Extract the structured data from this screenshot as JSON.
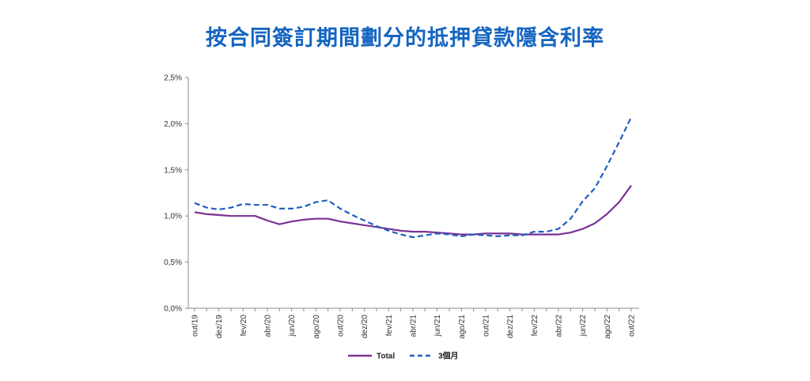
{
  "chart_data": {
    "type": "line",
    "title": "按合同簽訂期間劃分的抵押貸款隱含利率",
    "x": [
      "out/19",
      "nov/19",
      "dez/19",
      "jan/20",
      "fev/20",
      "mar/20",
      "abr/20",
      "mai/20",
      "jun/20",
      "jul/20",
      "ago/20",
      "set/20",
      "out/20",
      "nov/20",
      "dez/20",
      "jan/21",
      "fev/21",
      "mar/21",
      "abr/21",
      "mai/21",
      "jun/21",
      "jul/21",
      "ago/21",
      "set/21",
      "out/21",
      "nov/21",
      "dez/21",
      "jan/22",
      "fev/22",
      "mar/22",
      "abr/22",
      "mai/22",
      "jun/22",
      "jul/22",
      "ago/22",
      "set/22",
      "out/22"
    ],
    "x_tick_labels": [
      "out/19",
      "dez/19",
      "fev/20",
      "abr/20",
      "jun/20",
      "ago/20",
      "out/20",
      "dez/20",
      "fev/21",
      "abr/21",
      "jun/21",
      "ago/21",
      "out/21",
      "dez/21",
      "fev/22",
      "abr/22",
      "jun/22",
      "ago/22",
      "out/22"
    ],
    "y_tick_labels": [
      "0,0%",
      "0,5%",
      "1,0%",
      "1,5%",
      "2,0%",
      "2,5%"
    ],
    "ylim": [
      0,
      2.5
    ],
    "series": [
      {
        "name": "Total",
        "color": "#7b3294",
        "style": "solid",
        "values": [
          1.04,
          1.02,
          1.01,
          1.0,
          1.0,
          1.0,
          0.95,
          0.91,
          0.94,
          0.96,
          0.97,
          0.97,
          0.94,
          0.92,
          0.9,
          0.88,
          0.86,
          0.84,
          0.83,
          0.83,
          0.82,
          0.81,
          0.8,
          0.8,
          0.81,
          0.81,
          0.81,
          0.8,
          0.8,
          0.8,
          0.8,
          0.82,
          0.86,
          0.92,
          1.02,
          1.15,
          1.33
        ]
      },
      {
        "name": "3個月",
        "color": "#1f5fbf",
        "style": "dashed",
        "values": [
          1.14,
          1.09,
          1.07,
          1.09,
          1.13,
          1.12,
          1.12,
          1.08,
          1.08,
          1.1,
          1.15,
          1.17,
          1.08,
          1.01,
          0.95,
          0.89,
          0.84,
          0.8,
          0.77,
          0.79,
          0.81,
          0.8,
          0.78,
          0.8,
          0.79,
          0.78,
          0.79,
          0.79,
          0.83,
          0.83,
          0.86,
          0.97,
          1.16,
          1.3,
          1.54,
          1.8,
          2.07
        ]
      }
    ],
    "legend_position": "bottom",
    "grid": false
  }
}
